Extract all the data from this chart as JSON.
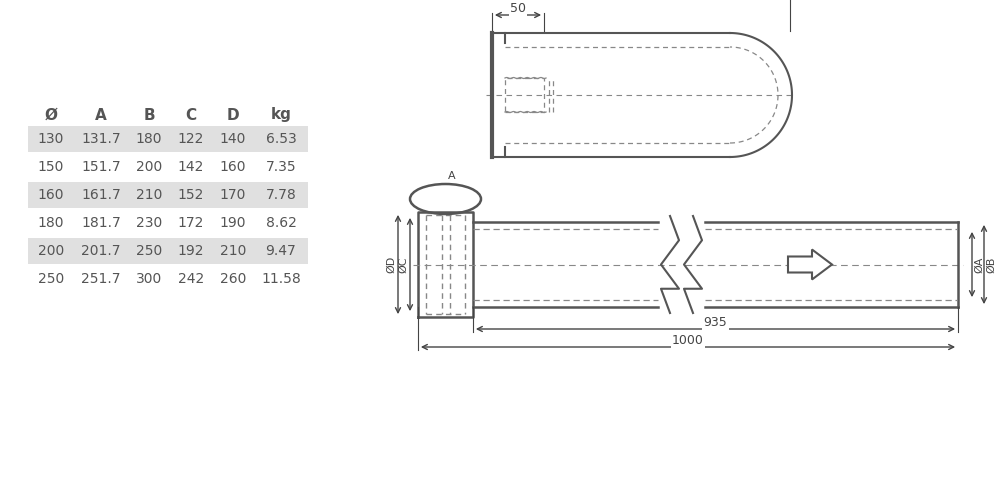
{
  "table": {
    "headers": [
      "Ø",
      "A",
      "B",
      "C",
      "D",
      "kg"
    ],
    "rows": [
      [
        "130",
        "131.7",
        "180",
        "122",
        "140",
        "6.53"
      ],
      [
        "150",
        "151.7",
        "200",
        "142",
        "160",
        "7.35"
      ],
      [
        "160",
        "161.7",
        "210",
        "152",
        "170",
        "7.78"
      ],
      [
        "180",
        "181.7",
        "230",
        "172",
        "190",
        "8.62"
      ],
      [
        "200",
        "201.7",
        "250",
        "192",
        "210",
        "9.47"
      ],
      [
        "250",
        "251.7",
        "300",
        "242",
        "260",
        "11.58"
      ]
    ],
    "shaded_rows": [
      0,
      2,
      4
    ],
    "shade_color": "#e0e0e0",
    "text_color": "#555555"
  },
  "drawing": {
    "line_color": "#555555",
    "dashed_color": "#888888",
    "dim_color": "#444444",
    "bg_color": "#ffffff"
  }
}
